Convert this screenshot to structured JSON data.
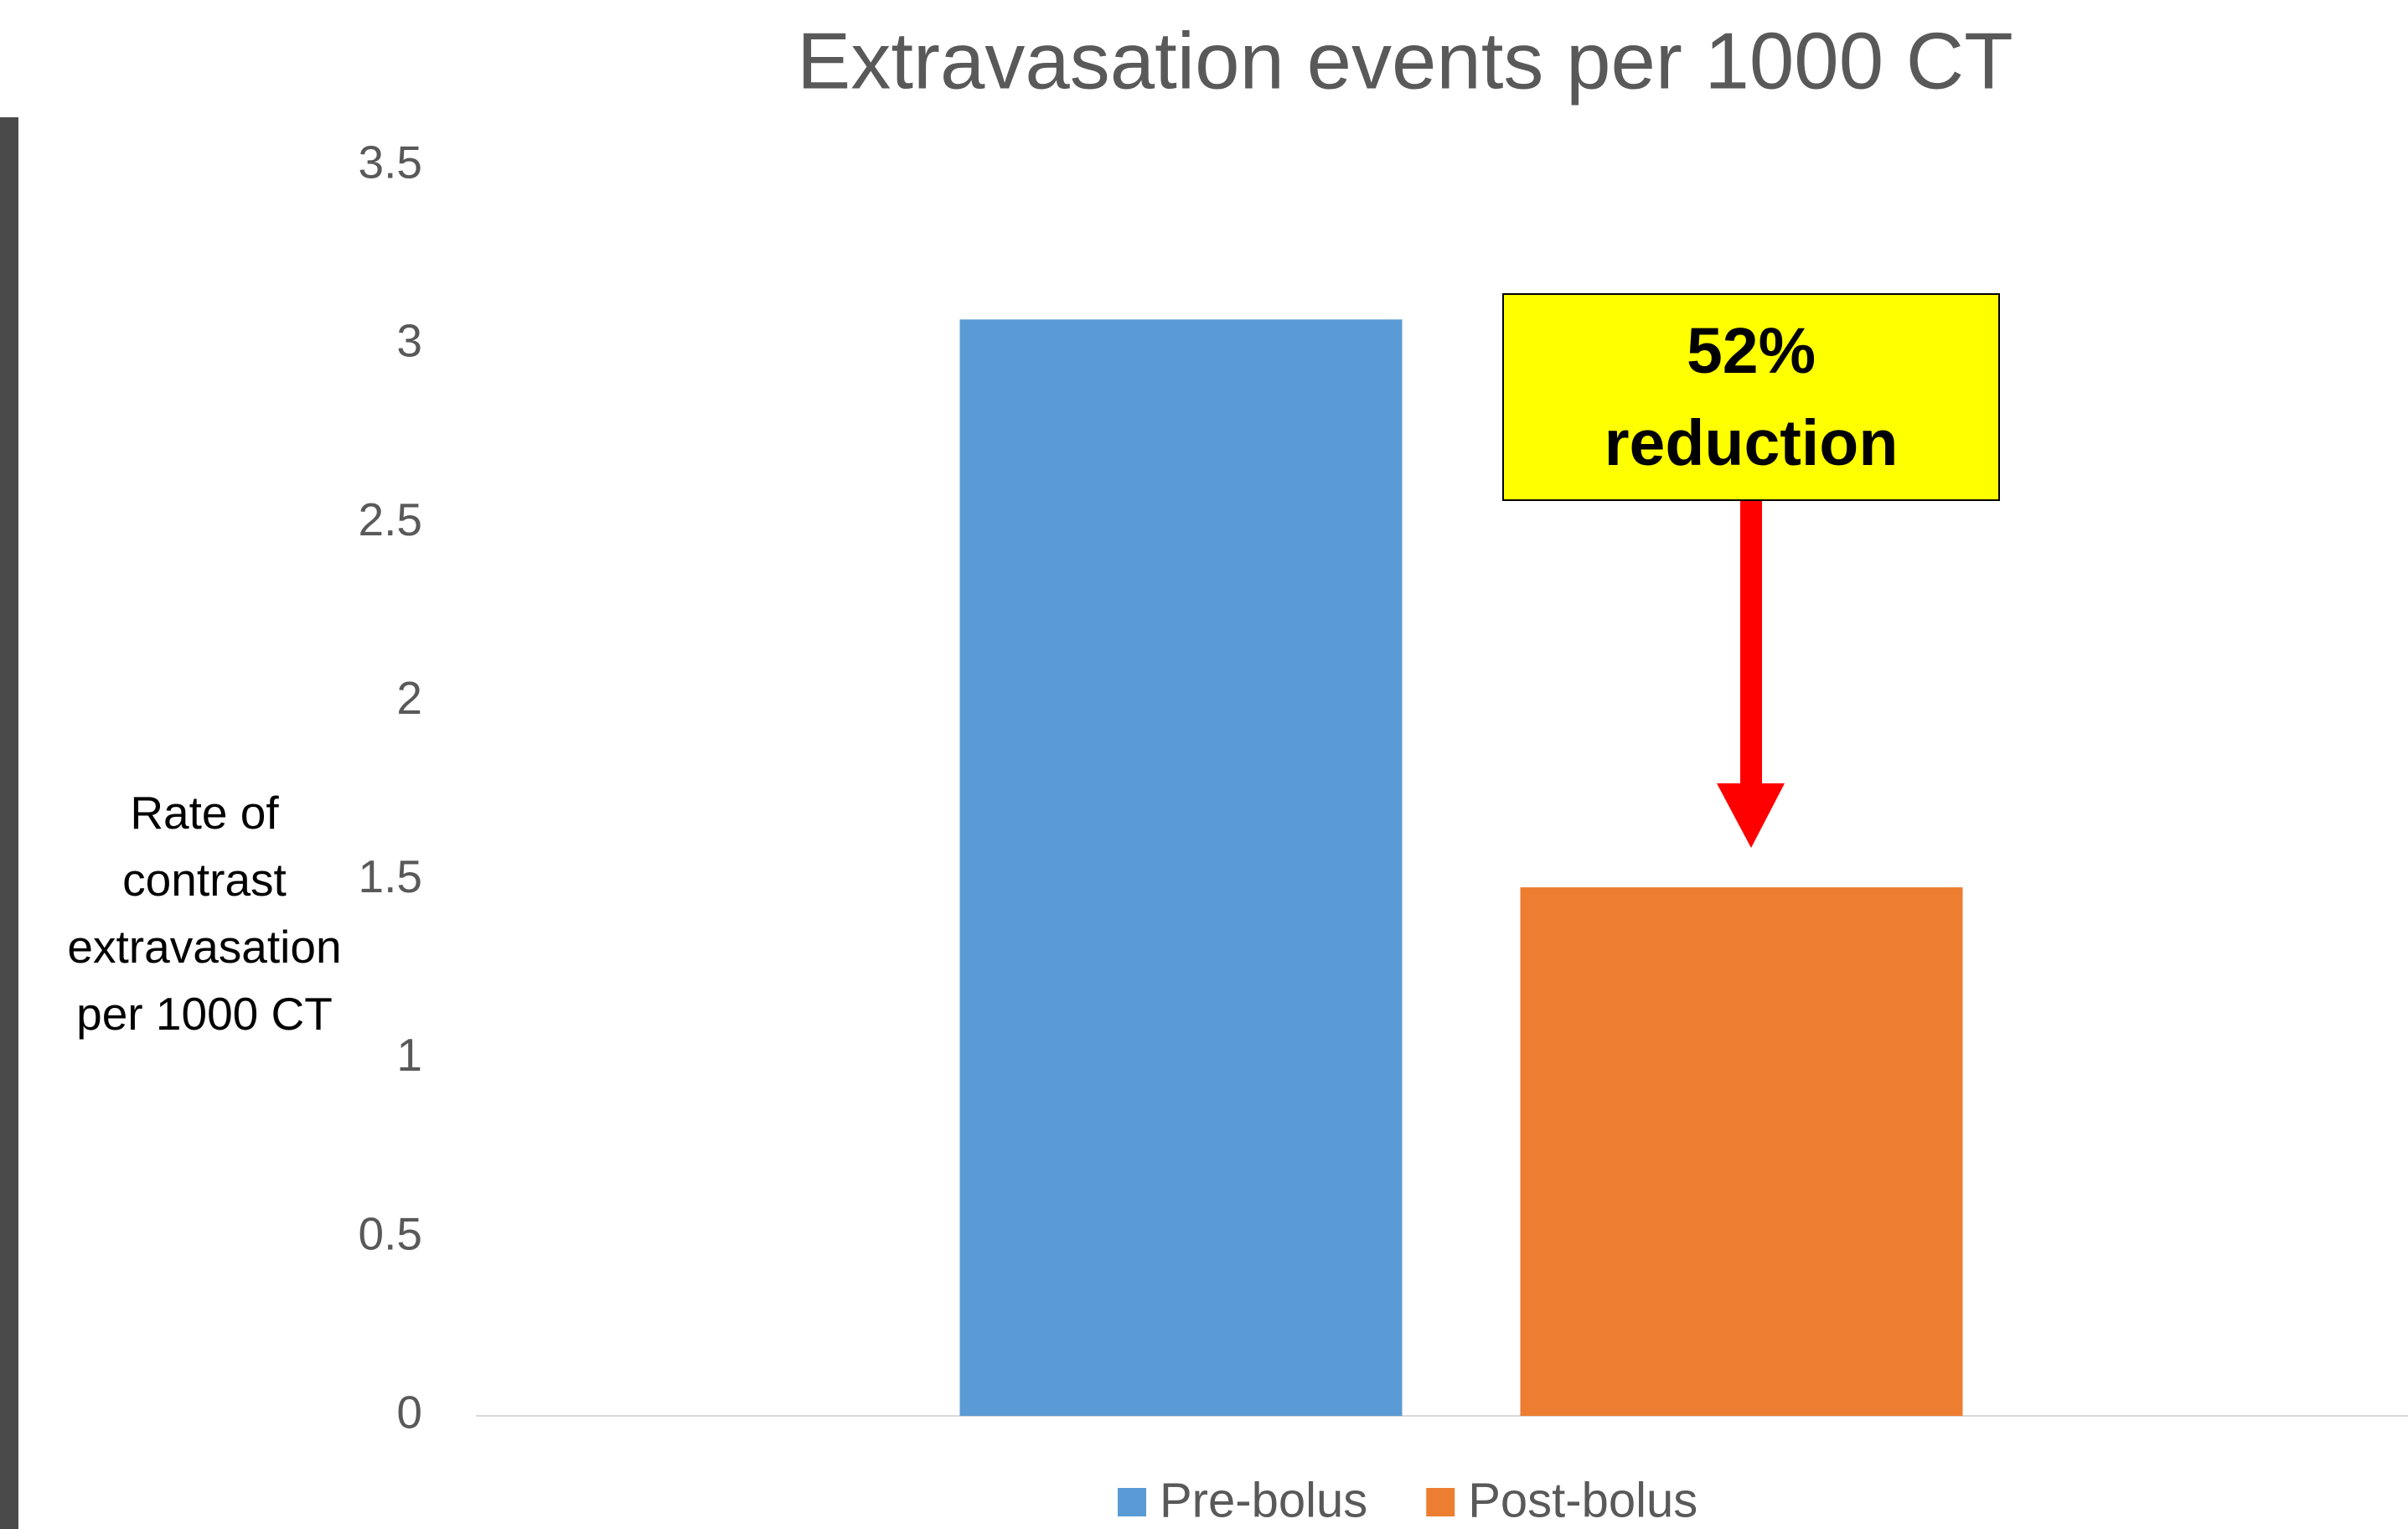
{
  "chart_data": {
    "type": "bar",
    "title": "Extravasation events per 1000 CT",
    "ylabel": "Rate of contrast extravasation per 1000 CT",
    "annotation": "52% reduction",
    "categories": [
      null
    ],
    "series": [
      {
        "name": "Pre-bolus",
        "color": "#5b9bd5",
        "values": [
          3.07
        ]
      },
      {
        "name": "Post-bolus",
        "color": "#ed7d31",
        "values": [
          1.48
        ]
      }
    ],
    "ylim": [
      0,
      3.5
    ],
    "yticks": [
      0,
      0.5,
      1,
      1.5,
      2,
      2.5,
      3,
      3.5
    ],
    "grid": false,
    "legend": "bottom"
  }
}
